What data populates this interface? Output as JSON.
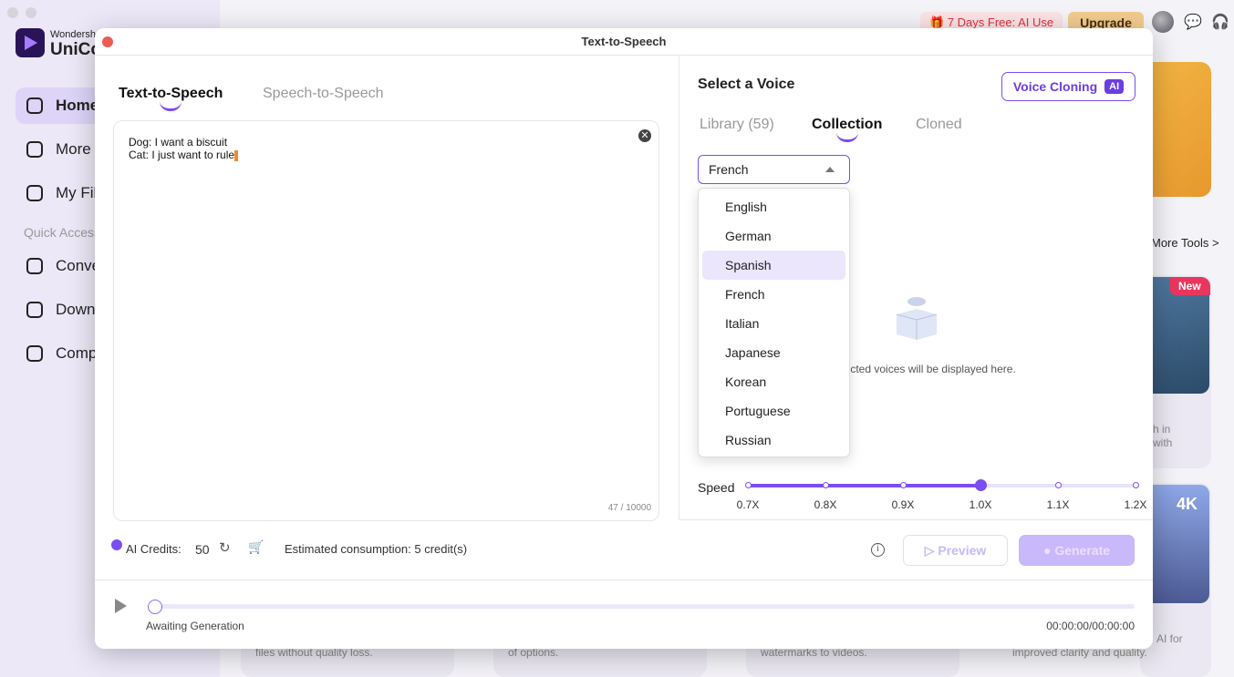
{
  "background_app": {
    "brand_top": "Wondershare",
    "brand_name": "UniConverter",
    "sidebar": {
      "items": [
        {
          "label": "Home",
          "icon": "home-icon",
          "active": true
        },
        {
          "label": "More Tools",
          "icon": "toolbox-icon"
        },
        {
          "label": "My Files",
          "icon": "file-icon"
        }
      ],
      "section": "Quick Access",
      "quick": [
        {
          "label": "Converter",
          "icon": "convert-icon"
        },
        {
          "label": "Downloader",
          "icon": "download-icon"
        },
        {
          "label": "Compressor",
          "icon": "compress-icon"
        }
      ]
    },
    "header": {
      "promo": "7 Days Free: AI Use",
      "upgrade": "Upgrade"
    },
    "more_tools": "More Tools >",
    "badge_new": "New",
    "badge_4k": "4K",
    "card_texts": [
      "h in",
      "with",
      "AI for",
      "improved clarity and quality.",
      "files without quality loss.",
      "of options.",
      "watermarks to videos."
    ]
  },
  "modal": {
    "title": "Text-to-Speech",
    "tabs": [
      {
        "label": "Text-to-Speech",
        "active": true
      },
      {
        "label": "Speech-to-Speech"
      }
    ],
    "text_content": "Dog: I want a biscuit\nCat: I just want to rule",
    "char_count": "47 / 10000",
    "voice": {
      "heading": "Select a Voice",
      "cloning_button": "Voice Cloning",
      "ai_badge": "AI",
      "tabs": [
        {
          "label": "Library (59)"
        },
        {
          "label": "Collection",
          "active": true
        },
        {
          "label": "Cloned"
        }
      ],
      "language_selected": "French",
      "language_options": [
        "English",
        "German",
        "Spanish",
        "French",
        "Italian",
        "Japanese",
        "Korean",
        "Portuguese",
        "Russian"
      ],
      "highlighted_option": "Spanish",
      "empty_text": "Collected voices will be displayed here."
    },
    "speed": {
      "label": "Speed",
      "options": [
        "0.7X",
        "0.8X",
        "0.9X",
        "1.0X",
        "1.1X",
        "1.2X"
      ],
      "selected": "1.0X"
    },
    "credits": {
      "label": "AI Credits:",
      "value": "50",
      "estimate": "Estimated consumption: 5 credit(s)"
    },
    "preview_label": "Preview",
    "generate_label": "Generate",
    "player": {
      "status": "Awaiting Generation",
      "time": "00:00:00/00:00:00",
      "progress": 0
    },
    "accent": "#7a4df3"
  }
}
